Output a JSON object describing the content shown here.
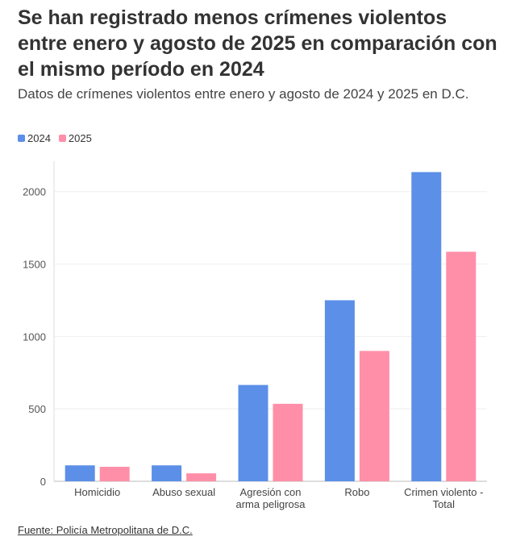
{
  "chart_data": {
    "type": "bar",
    "title": "Se han registrado menos crímenes violentos entre enero y agosto de 2025 en comparación con el mismo período en 2024",
    "subtitle": "Datos de crímenes violentos entre enero y agosto de 2024 y 2025 en D.C.",
    "categories": [
      "Homicidio",
      "Abuso sexual",
      "Agresión con arma peligrosa",
      "Robo",
      "Crimen violento - Total"
    ],
    "series": [
      {
        "name": "2024",
        "color": "#5b8fe8",
        "values": [
          110,
          110,
          665,
          1250,
          2135
        ]
      },
      {
        "name": "2025",
        "color": "#ff8fa8",
        "values": [
          100,
          55,
          535,
          900,
          1585
        ]
      }
    ],
    "ylim": [
      0,
      2210
    ],
    "yticks": [
      0,
      500,
      1000,
      1500,
      2000
    ],
    "grid": true,
    "source": "Fuente: Policía Metropolitana de D.C."
  }
}
